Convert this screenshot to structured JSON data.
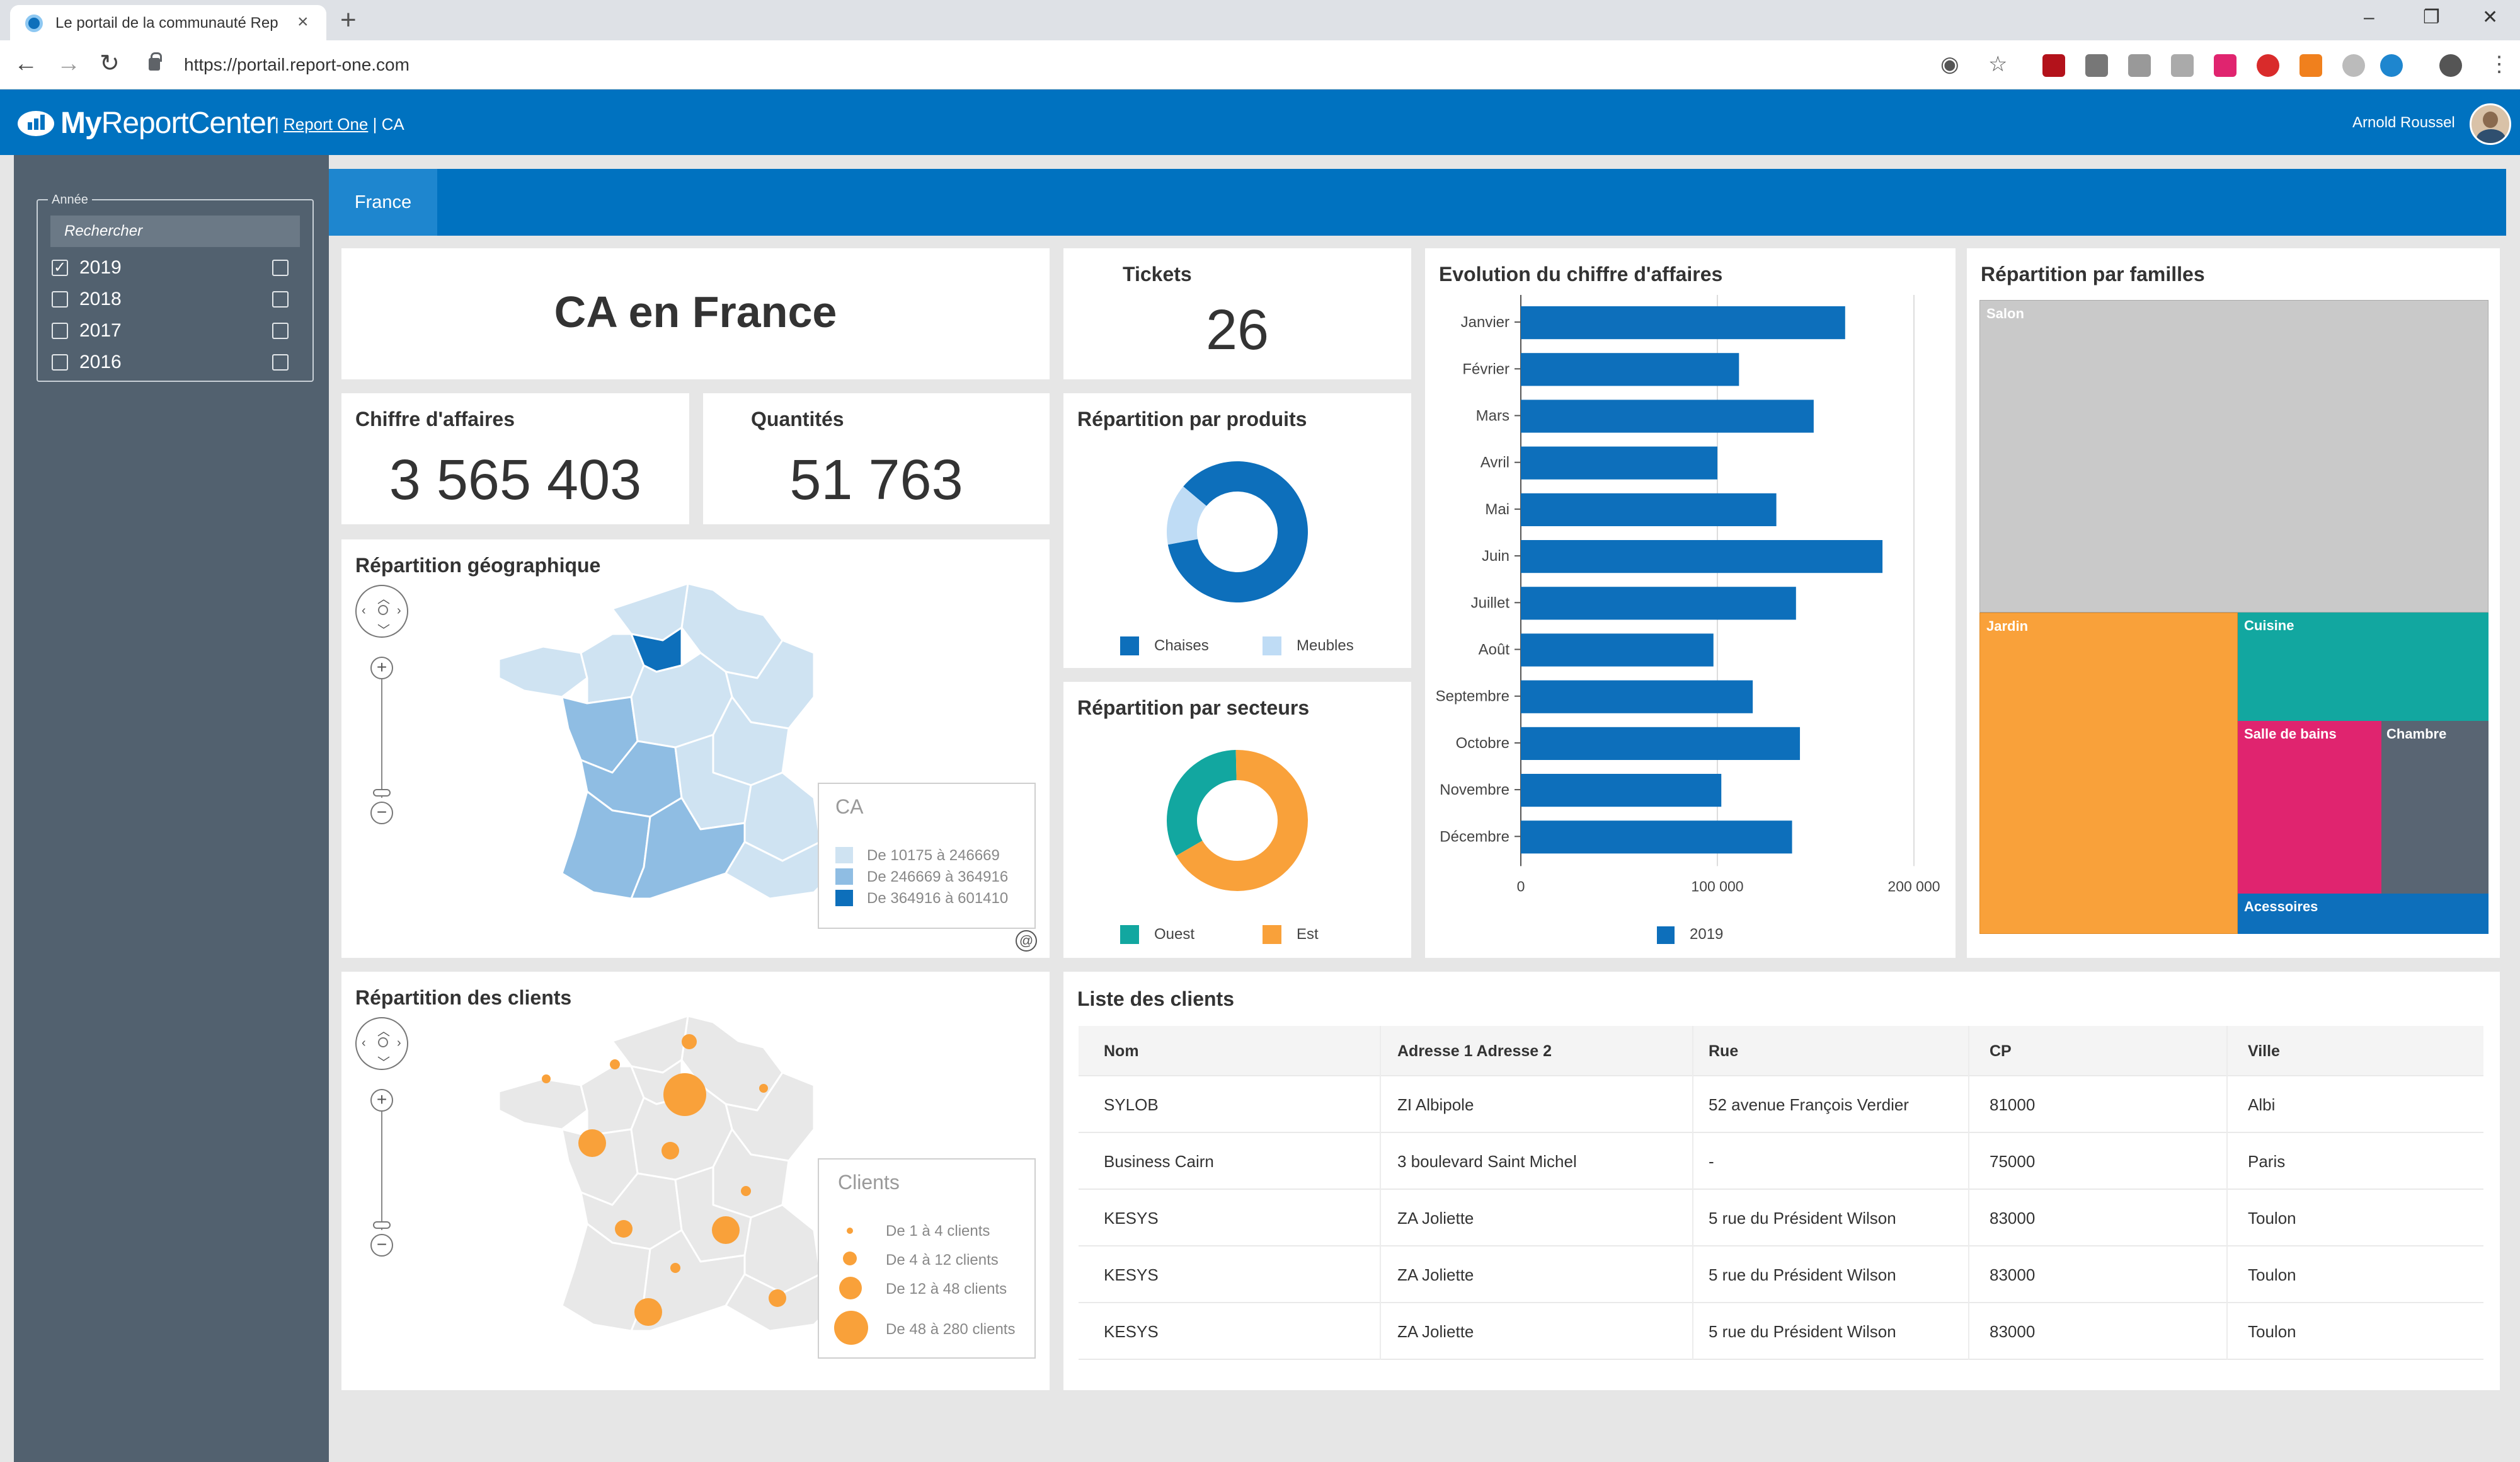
{
  "browser": {
    "tab_title": "Le portail de la communauté Rep",
    "url": "https://portail.report-one.com"
  },
  "header": {
    "logo_text_a": "My",
    "logo_text_b": "ReportCenter",
    "crumb_link": "Report One",
    "crumb_rest": "CA",
    "username": "Arnold Roussel"
  },
  "sidebar": {
    "year_label": "Année",
    "search_placeholder": "Rechercher",
    "years": [
      {
        "label": "2019",
        "checked": true
      },
      {
        "label": "2018",
        "checked": false
      },
      {
        "label": "2017",
        "checked": false
      },
      {
        "label": "2016",
        "checked": false
      }
    ]
  },
  "tabs": {
    "active": "France"
  },
  "kpis": {
    "title": "CA en France",
    "tickets_label": "Tickets",
    "tickets_value": "26",
    "ca_label": "Chiffre d'affaires",
    "ca_value": "3 565 403",
    "qty_label": "Quantités",
    "qty_value": "51 763"
  },
  "geo_map": {
    "title": "Répartition géographique",
    "legend_title": "CA",
    "legend": [
      {
        "label": "De 10175 à 246669",
        "color": "#cfe3f2"
      },
      {
        "label": "De 246669 à 364916",
        "color": "#8fbde3"
      },
      {
        "label": "De 364916 à 601410",
        "color": "#0d6fbb"
      }
    ]
  },
  "clients_map": {
    "title": "Répartition des clients",
    "legend_title": "Clients",
    "legend": [
      {
        "label": "De 1 à 4 clients"
      },
      {
        "label": "De 4 à 12 clients"
      },
      {
        "label": "De 12 à 48 clients"
      },
      {
        "label": "De 48 à 280 clients"
      }
    ],
    "bubble_color": "#f9a13a"
  },
  "chart_data": [
    {
      "type": "pie",
      "title": "Répartition par produits",
      "labels": [
        "Chaises",
        "Meubles"
      ],
      "values": [
        86,
        14
      ],
      "colors": [
        "#0d6fbb",
        "#bfdcf5"
      ]
    },
    {
      "type": "pie",
      "title": "Répartition par secteurs",
      "labels": [
        "Ouest",
        "Est"
      ],
      "values": [
        33,
        67
      ],
      "colors": [
        "#12a7a0",
        "#f9a13a"
      ]
    },
    {
      "type": "bar",
      "orientation": "horizontal",
      "title": "Evolution du chiffre d'affaires",
      "categories": [
        "Janvier",
        "Février",
        "Mars",
        "Avril",
        "Mai",
        "Juin",
        "Juillet",
        "Août",
        "Septembre",
        "Octobre",
        "Novembre",
        "Décembre"
      ],
      "series": [
        {
          "name": "2019",
          "values": [
            165000,
            111000,
            149000,
            100000,
            130000,
            184000,
            140000,
            98000,
            118000,
            142000,
            102000,
            138000
          ],
          "color": "#0d6fbb"
        }
      ],
      "xlim": [
        0,
        200000
      ],
      "xticks": [
        "0",
        "100 000",
        "200 000"
      ],
      "grid": true,
      "legend": "bottom"
    },
    {
      "type": "treemap",
      "title": "Répartition par familles",
      "labels": [
        "Salon",
        "Jardin",
        "Cuisine",
        "Salle de bains",
        "Chambre",
        "Acessoires"
      ],
      "colors": [
        "#c9c9c9",
        "#f9a13a",
        "#12a7a0",
        "#e0246f",
        "#596573",
        "#0d6fbb"
      ]
    }
  ],
  "client_list": {
    "title": "Liste des clients",
    "columns": [
      "Nom",
      "Adresse 1  Adresse 2",
      "Rue",
      "CP",
      "Ville"
    ],
    "rows": [
      [
        "SYLOB",
        "ZI Albipole",
        "52 avenue François Verdier",
        "81000",
        "Albi"
      ],
      [
        "Business Cairn",
        "3 boulevard Saint Michel",
        "-",
        "75000",
        "Paris"
      ],
      [
        "KESYS",
        "ZA Joliette",
        "5 rue du Président Wilson",
        "83000",
        "Toulon"
      ],
      [
        "KESYS",
        "ZA Joliette",
        "5 rue du Président Wilson",
        "83000",
        "Toulon"
      ],
      [
        "KESYS",
        "ZA Joliette",
        "5 rue du Président Wilson",
        "83000",
        "Toulon"
      ]
    ]
  }
}
